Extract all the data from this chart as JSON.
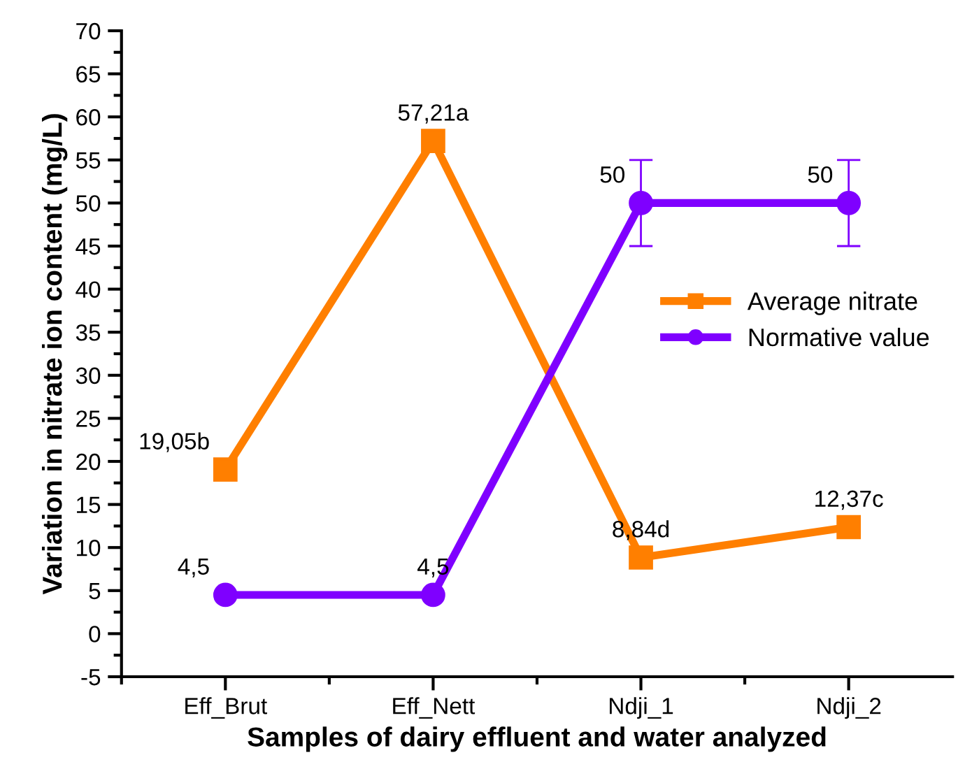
{
  "chart_data": {
    "type": "line",
    "xlabel": "Samples of dairy effluent and water analyzed",
    "ylabel": "Variation in nitrate ion content (mg/L)",
    "categories": [
      "Eff_Brut",
      "Eff_Nett",
      "Ndji_1",
      "Ndji_2"
    ],
    "series": [
      {
        "name": "Average nitrate",
        "color": "#ff7f00",
        "marker": "square",
        "values": [
          19.05,
          57.21,
          8.84,
          12.37
        ],
        "value_labels": [
          "19,05b",
          "57,21a",
          "8,84d",
          "12,37c"
        ]
      },
      {
        "name": "Normative value",
        "color": "#7f00ff",
        "marker": "circle",
        "values": [
          4.5,
          4.5,
          50,
          50
        ],
        "value_labels": [
          "4,5",
          "4,5",
          "50",
          "50"
        ],
        "errors": [
          null,
          null,
          5,
          5
        ]
      }
    ],
    "ylim": [
      -5,
      70
    ],
    "yticks": [
      -5,
      0,
      5,
      10,
      15,
      20,
      25,
      30,
      35,
      40,
      45,
      50,
      55,
      60,
      65,
      70
    ],
    "legend": "right",
    "grid": false,
    "line_style": "solid"
  }
}
